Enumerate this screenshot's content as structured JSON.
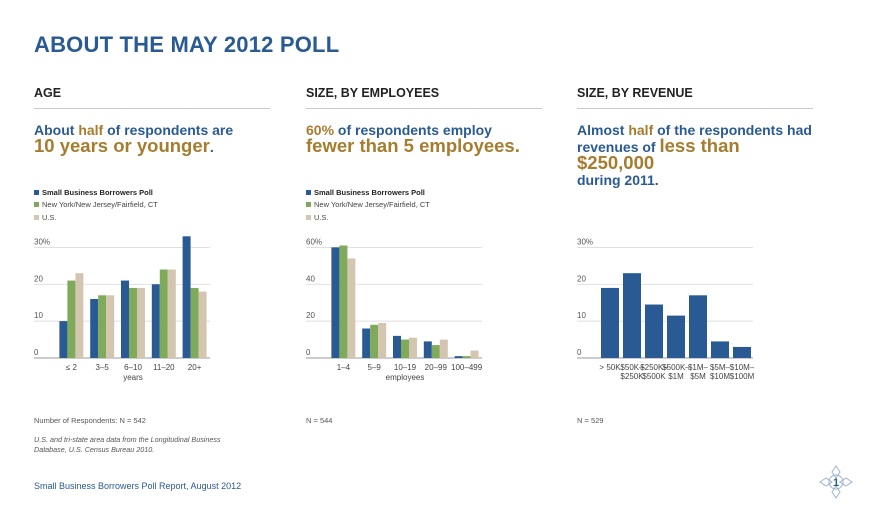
{
  "title": "ABOUT THE MAY 2012 POLL",
  "colors": {
    "poll": "#2a5a94",
    "ny": "#7eaa5a",
    "us": "#d4c5b0",
    "accent": "#a67c2e"
  },
  "legend": {
    "poll": "Small Business Borrowers Poll",
    "ny": "New York/New Jersey/Fairfield, CT",
    "us": "U.S."
  },
  "panels": {
    "age": {
      "heading": "AGE",
      "headline_a": "About ",
      "headline_b": "half",
      "headline_c": " of respondents are",
      "headline_d": "10 years or younger",
      "headline_e": ".",
      "note": "Number of Respondents: N = 542"
    },
    "employees": {
      "heading": "SIZE, BY EMPLOYEES",
      "headline_a": "60%",
      "headline_b": " of respondents employ",
      "headline_c": "fewer than 5 employees",
      "headline_d": ".",
      "note": "N = 544"
    },
    "revenue": {
      "heading": "SIZE, BY REVENUE",
      "headline_a": "Almost ",
      "headline_b": "half",
      "headline_c": " of the respondents had",
      "headline_d": "revenues of ",
      "headline_e": "less than $250,000",
      "headline_f": "during 2011.",
      "note": "N = 529"
    }
  },
  "source": "U.S. and tri-state area data from the Longitudinal Business Database, U.S. Census Bureau 2010.",
  "footer": "Small Business Borrowers Poll Report, August 2012",
  "page_number": "1",
  "chart_data": [
    {
      "type": "bar",
      "title": "AGE",
      "xlabel": "years",
      "ylabel": "",
      "ylim": [
        0,
        32
      ],
      "yticks": [
        "0",
        "10",
        "20",
        "30%"
      ],
      "ytick_values": [
        0,
        10,
        20,
        30
      ],
      "categories": [
        "≤ 2",
        "3–5",
        "6–10",
        "11–20",
        "20+"
      ],
      "series": [
        {
          "name": "Small Business Borrowers Poll",
          "values": [
            10,
            16,
            21,
            20,
            33
          ]
        },
        {
          "name": "New York/New Jersey/Fairfield, CT",
          "values": [
            21,
            17,
            19,
            24,
            19
          ]
        },
        {
          "name": "U.S.",
          "values": [
            23,
            17,
            19,
            24,
            18
          ]
        }
      ]
    },
    {
      "type": "bar",
      "title": "SIZE, BY EMPLOYEES",
      "xlabel": "employees",
      "ylabel": "",
      "ylim": [
        0,
        64
      ],
      "yticks": [
        "0",
        "20",
        "40",
        "60%"
      ],
      "ytick_values": [
        0,
        20,
        40,
        60
      ],
      "categories": [
        "1–4",
        "5–9",
        "10–19",
        "20–99",
        "100–499"
      ],
      "series": [
        {
          "name": "Small Business Borrowers Poll",
          "values": [
            60,
            16,
            12,
            9,
            1
          ]
        },
        {
          "name": "New York/New Jersey/Fairfield, CT",
          "values": [
            61,
            18,
            10,
            7,
            1
          ]
        },
        {
          "name": "U.S.",
          "values": [
            54,
            19,
            11,
            10,
            4
          ]
        }
      ]
    },
    {
      "type": "bar",
      "title": "SIZE, BY REVENUE",
      "xlabel": "",
      "ylabel": "",
      "ylim": [
        0,
        32
      ],
      "yticks": [
        "0",
        "10",
        "20",
        "30%"
      ],
      "ytick_values": [
        0,
        10,
        20,
        30
      ],
      "categories": [
        "> 50K",
        "$50K–\n$250K",
        "$250K–\n$500K",
        "$500K–\n$1M",
        "$1M–\n$5M",
        "$5M–\n$10M",
        "$10M–\n$100M"
      ],
      "series": [
        {
          "name": "Small Business Borrowers Poll",
          "values": [
            19,
            23,
            14.5,
            11.5,
            17,
            4.5,
            3
          ]
        }
      ]
    }
  ]
}
